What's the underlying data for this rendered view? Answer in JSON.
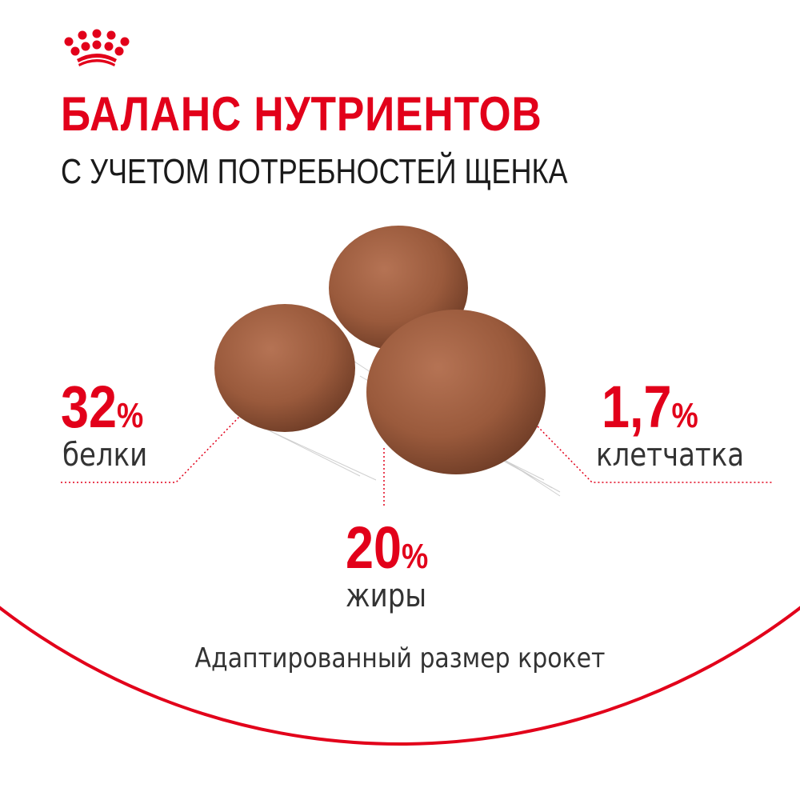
{
  "brand": {
    "logo": "crown-logo",
    "color": "#e2001a"
  },
  "header": {
    "title": "БАЛАНС НУТРИЕНТОВ",
    "subtitle": "С УЧЕТОМ ПОТРЕБНОСТЕЙ ЩЕНКА"
  },
  "nutrients": [
    {
      "value": "32",
      "unit": "%",
      "label": "белки"
    },
    {
      "value": "20",
      "unit": "%",
      "label": "жиры"
    },
    {
      "value": "1,7",
      "unit": "%",
      "label": "клетчатка"
    }
  ],
  "caption": "Адаптированный размер крокет",
  "colors": {
    "accent": "#e2001a",
    "text": "#333333",
    "kibble": "#9a5a3c"
  }
}
